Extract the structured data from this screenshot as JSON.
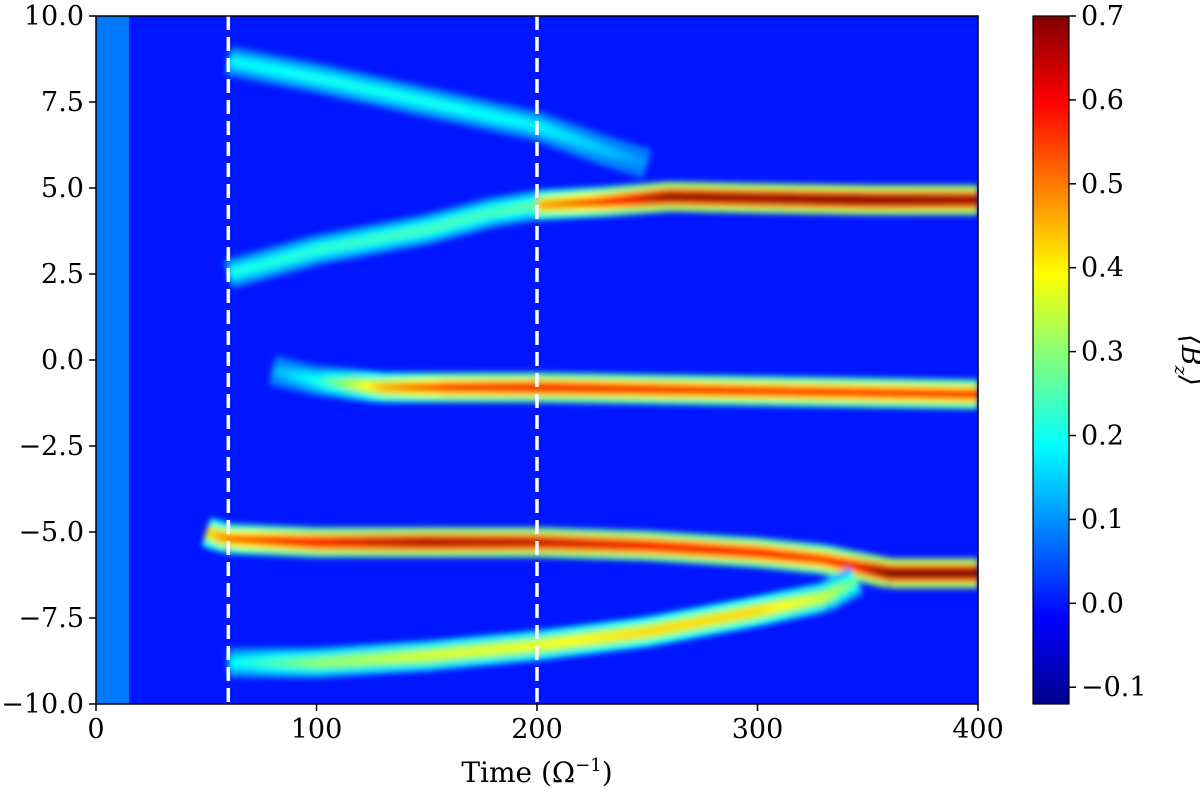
{
  "chart_data": {
    "type": "heatmap",
    "title": "",
    "xlabel": "Time (Ω",
    "xlabel_sup": "−1",
    "xlabel_end": ")",
    "ylabel": "",
    "xlim": [
      0,
      400
    ],
    "ylim": [
      -10,
      10
    ],
    "xticks": [
      0,
      100,
      200,
      300,
      400
    ],
    "xtick_labels": [
      "0",
      "100",
      "200",
      "300",
      "400"
    ],
    "yticks": [
      10,
      7.5,
      5,
      2.5,
      0,
      -2.5,
      -5,
      -7.5,
      -10
    ],
    "ytick_labels": [
      "10.0",
      "7.5",
      "5.0",
      "2.5",
      "0.0",
      "−2.5",
      "−5.0",
      "−7.5",
      "−10.0"
    ],
    "colorbar": {
      "label": "⟨B",
      "label_sub": "z",
      "label_end": "⟩",
      "vmin": -0.12,
      "vmax": 0.7,
      "ticks": [
        0.7,
        0.6,
        0.5,
        0.4,
        0.3,
        0.2,
        0.1,
        0.0,
        -0.1
      ],
      "tick_labels": [
        "0.7",
        "0.6",
        "0.5",
        "0.4",
        "0.3",
        "0.2",
        "0.1",
        "0.0",
        "−0.1"
      ],
      "colormap": "jet"
    },
    "background_value": 0.0,
    "early_region": {
      "x_range": [
        0,
        15
      ],
      "value": 0.08
    },
    "vertical_markers": [
      {
        "x": 60,
        "style": "dashed",
        "color": "#ffffff"
      },
      {
        "x": 200,
        "style": "dashed",
        "color": "#ffffff"
      }
    ],
    "bands": [
      {
        "name": "upper-arc",
        "x": [
          60,
          100,
          150,
          200,
          230,
          250
        ],
        "y": [
          8.7,
          8.2,
          7.5,
          6.8,
          6.1,
          5.7
        ],
        "value": [
          0.18,
          0.2,
          0.2,
          0.18,
          0.14,
          0.1
        ]
      },
      {
        "name": "upper-rising",
        "x": [
          60,
          100,
          150,
          180,
          200
        ],
        "y": [
          2.5,
          3.2,
          3.8,
          4.3,
          4.5
        ],
        "value": [
          0.2,
          0.22,
          0.24,
          0.24,
          0.26
        ]
      },
      {
        "name": "upper-sheet",
        "x": [
          200,
          230,
          260,
          300,
          350,
          400
        ],
        "y": [
          4.5,
          4.6,
          4.75,
          4.7,
          4.65,
          4.65
        ],
        "value": [
          0.45,
          0.55,
          0.68,
          0.68,
          0.7,
          0.68
        ]
      },
      {
        "name": "middle-sheet",
        "x": [
          80,
          100,
          130,
          160,
          200,
          250,
          300,
          350,
          400
        ],
        "y": [
          -0.3,
          -0.6,
          -0.8,
          -0.8,
          -0.8,
          -0.85,
          -0.9,
          -0.95,
          -1.0
        ],
        "value": [
          0.12,
          0.2,
          0.45,
          0.55,
          0.58,
          0.56,
          0.55,
          0.55,
          0.55
        ]
      },
      {
        "name": "lower-sheet",
        "x": [
          50,
          60,
          100,
          150,
          200,
          250,
          300,
          330,
          345,
          360,
          400
        ],
        "y": [
          -5.0,
          -5.2,
          -5.3,
          -5.3,
          -5.3,
          -5.4,
          -5.6,
          -5.8,
          -6.0,
          -6.2,
          -6.2
        ],
        "value": [
          0.4,
          0.5,
          0.6,
          0.66,
          0.64,
          0.6,
          0.58,
          0.55,
          0.6,
          0.7,
          0.7
        ]
      },
      {
        "name": "lower-arc",
        "x": [
          60,
          100,
          150,
          200,
          250,
          300,
          330,
          345
        ],
        "y": [
          -8.8,
          -8.8,
          -8.6,
          -8.3,
          -7.9,
          -7.3,
          -6.9,
          -6.4
        ],
        "value": [
          0.18,
          0.3,
          0.36,
          0.38,
          0.42,
          0.42,
          0.35,
          0.25
        ]
      }
    ]
  }
}
